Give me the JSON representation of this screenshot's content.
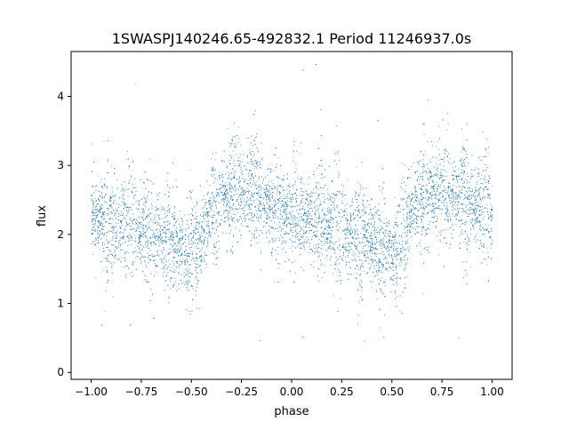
{
  "chart_data": {
    "type": "scatter",
    "title": "1SWASPJ140246.65-492832.1 Period 11246937.0s",
    "xlabel": "phase",
    "ylabel": "flux",
    "xlim": [
      -1.1,
      1.1
    ],
    "ylim": [
      -0.1,
      4.65
    ],
    "xticks": [
      -1.0,
      -0.75,
      -0.5,
      -0.25,
      0.0,
      0.25,
      0.5,
      0.75,
      1.0
    ],
    "xtick_labels": [
      "−1.00",
      "−0.75",
      "−0.50",
      "−0.25",
      "0.00",
      "0.25",
      "0.50",
      "0.75",
      "1.00"
    ],
    "yticks": [
      0,
      1,
      2,
      3,
      4
    ],
    "ytick_labels": [
      "0",
      "1",
      "2",
      "3",
      "4"
    ],
    "grid": false,
    "point_color": "#1f77b4",
    "series": [
      {
        "x_range": [
          -1.0,
          1.0
        ],
        "approx_points": 9000,
        "phase_flux_profile": [
          {
            "phase": -1.0,
            "flux": 2.3
          },
          {
            "phase": -0.9,
            "flux": 2.2
          },
          {
            "phase": -0.8,
            "flux": 2.1
          },
          {
            "phase": -0.7,
            "flux": 2.05
          },
          {
            "phase": -0.6,
            "flux": 1.9
          },
          {
            "phase": -0.5,
            "flux": 1.75
          },
          {
            "phase": -0.45,
            "flux": 1.9
          },
          {
            "phase": -0.4,
            "flux": 2.4
          },
          {
            "phase": -0.3,
            "flux": 2.6
          },
          {
            "phase": -0.2,
            "flux": 2.6
          },
          {
            "phase": -0.1,
            "flux": 2.4
          },
          {
            "phase": 0.0,
            "flux": 2.3
          },
          {
            "phase": 0.1,
            "flux": 2.2
          },
          {
            "phase": 0.2,
            "flux": 2.1
          },
          {
            "phase": 0.3,
            "flux": 2.05
          },
          {
            "phase": 0.4,
            "flux": 1.9
          },
          {
            "phase": 0.5,
            "flux": 1.75
          },
          {
            "phase": 0.55,
            "flux": 1.9
          },
          {
            "phase": 0.6,
            "flux": 2.4
          },
          {
            "phase": 0.7,
            "flux": 2.6
          },
          {
            "phase": 0.8,
            "flux": 2.6
          },
          {
            "phase": 0.9,
            "flux": 2.4
          },
          {
            "phase": 1.0,
            "flux": 2.3
          }
        ],
        "scatter_sd": 0.35
      }
    ]
  }
}
